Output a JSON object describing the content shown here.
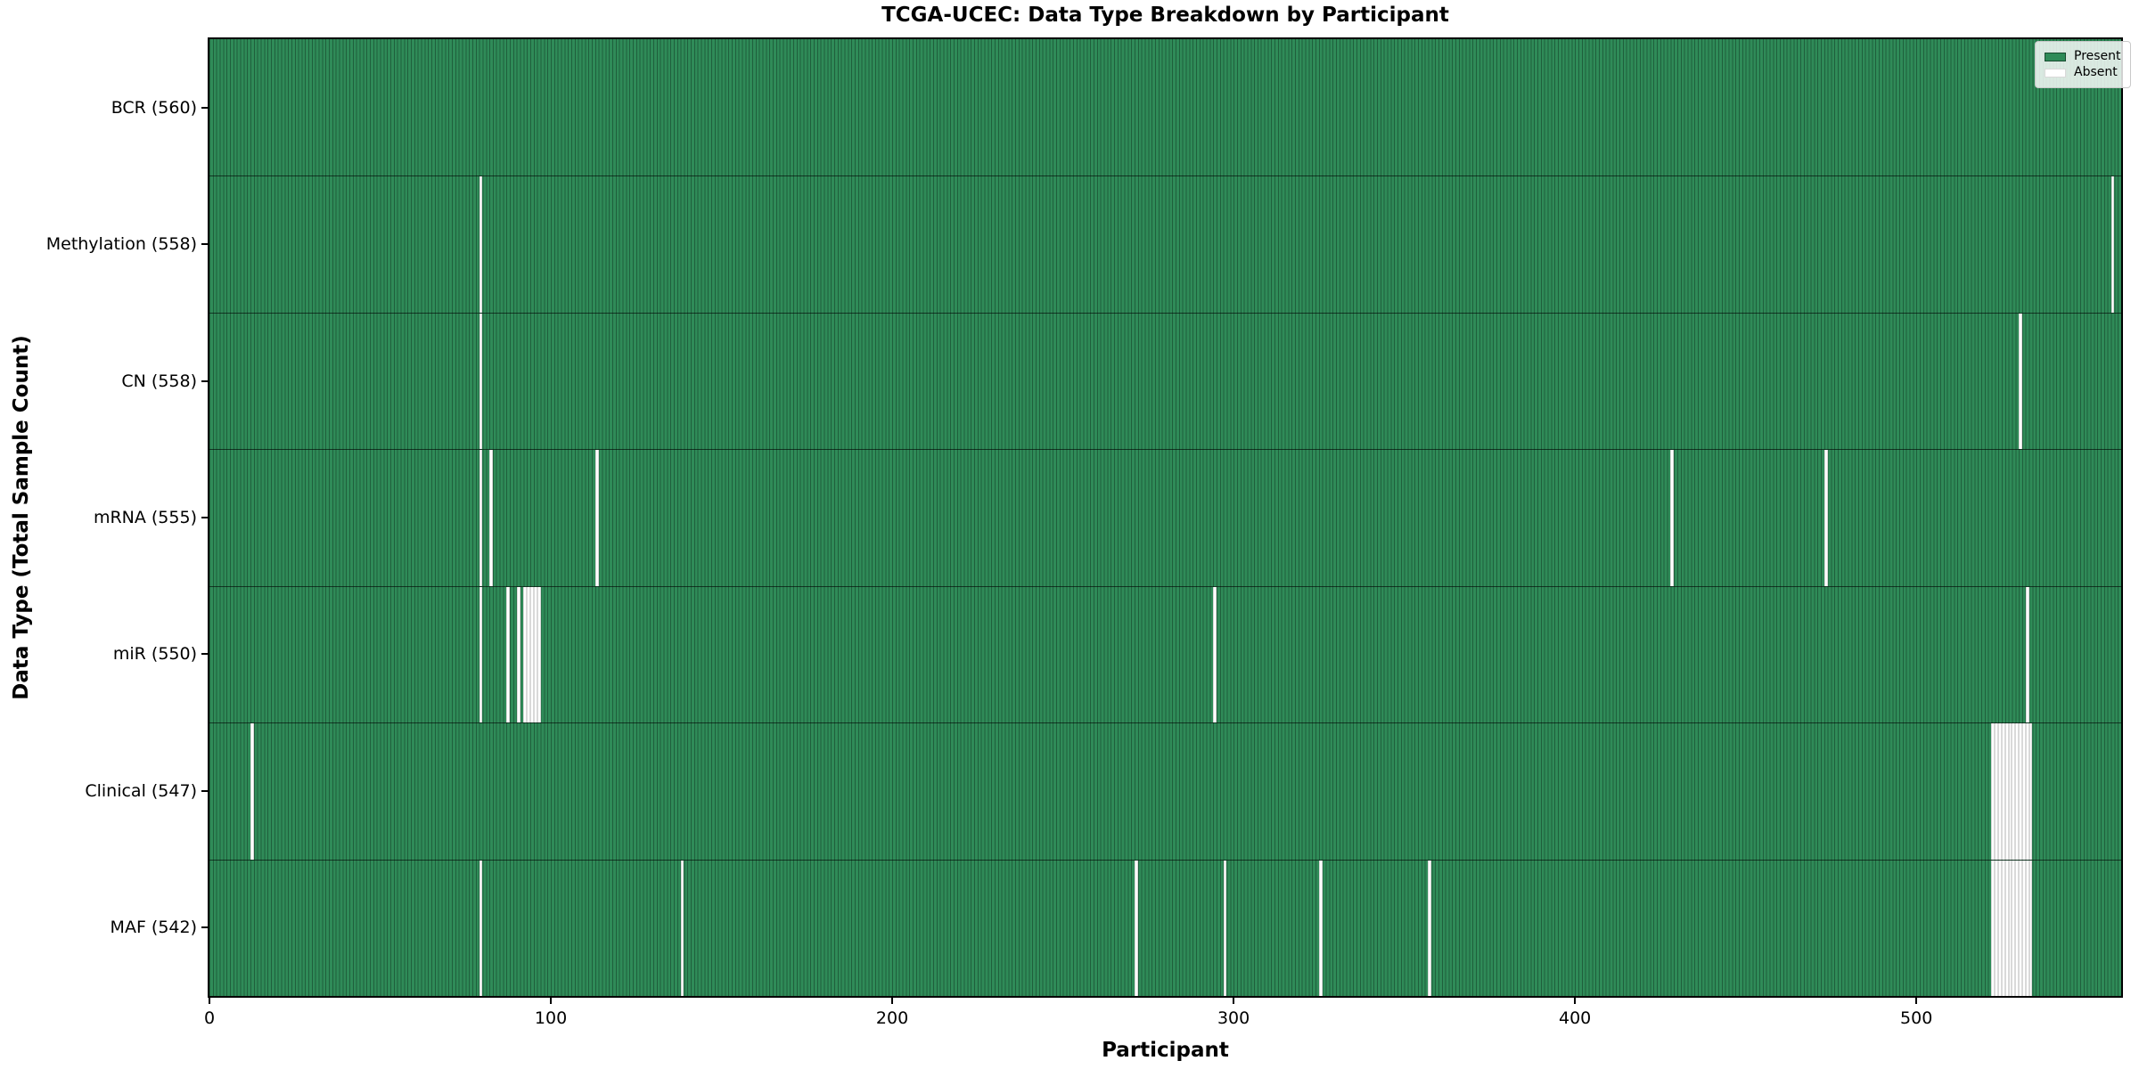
{
  "chart_data": {
    "type": "heatmap",
    "title": "TCGA-UCEC: Data Type Breakdown by Participant",
    "xlabel": "Participant",
    "ylabel": "Data Type (Total Sample Count)",
    "x_range": [
      0,
      560
    ],
    "x_ticks": [
      0,
      100,
      200,
      300,
      400,
      500
    ],
    "legend_position": "upper right",
    "grid": false,
    "legend": [
      {
        "label": "Present",
        "value": 1,
        "color": "#2f8b58"
      },
      {
        "label": "Absent",
        "value": 0,
        "color": "#ffffff"
      }
    ],
    "rows": [
      {
        "data_type": "BCR",
        "total": 560,
        "label": "BCR (560)",
        "absent_participants": []
      },
      {
        "data_type": "Methylation",
        "total": 558,
        "label": "Methylation (558)",
        "absent_participants": [
          79,
          557
        ]
      },
      {
        "data_type": "CN",
        "total": 558,
        "label": "CN (558)",
        "absent_participants": [
          79,
          530
        ]
      },
      {
        "data_type": "mRNA",
        "total": 555,
        "label": "mRNA (555)",
        "absent_participants": [
          79,
          82,
          113,
          428,
          473
        ]
      },
      {
        "data_type": "miR",
        "total": 550,
        "label": "miR (550)",
        "absent_participants": [
          79,
          87,
          90,
          92,
          93,
          94,
          95,
          96,
          294,
          532
        ]
      },
      {
        "data_type": "Clinical",
        "total": 547,
        "label": "Clinical (547)",
        "absent_participants": [
          12,
          522,
          523,
          524,
          525,
          526,
          527,
          528,
          529,
          530,
          531,
          532,
          533
        ]
      },
      {
        "data_type": "MAF",
        "total": 542,
        "label": "MAF (542)",
        "absent_participants": [
          79,
          138,
          271,
          297,
          325,
          357,
          522,
          523,
          524,
          525,
          526,
          527,
          528,
          529,
          530,
          531,
          532,
          533
        ]
      }
    ],
    "colors": {
      "present_fill": "#2f8b58",
      "present_edge": "#1f5f3c",
      "absent_fill": "#ffffff",
      "absent_edge": "#d9d9d9",
      "row_divider": "rgba(0,0,0,0.6)",
      "axis": "#000000",
      "legend_border": "#c9c9c9"
    }
  }
}
